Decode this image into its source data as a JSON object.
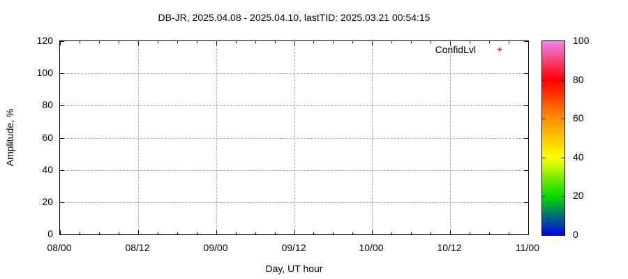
{
  "chart_data": {
    "type": "scatter",
    "title": "DB-JR, 2025.04.08 - 2025.04.10, lastTID: 2025.03.21 00:54:15",
    "xlabel": "Day, UT hour",
    "ylabel": "Amplitude, %",
    "x_tick_labels": [
      "08/00",
      "08/12",
      "09/00",
      "09/12",
      "10/00",
      "10/12",
      "11/00"
    ],
    "x_minor_divisions": 4,
    "y_ticks": [
      0,
      20,
      40,
      60,
      80,
      100,
      120
    ],
    "ylim": [
      0,
      120
    ],
    "grid": "dashed horizontal and vertical at major ticks",
    "legend_position": "top-right-inside",
    "series": [
      {
        "name": "ConfidLvl",
        "marker_glyph": "+",
        "color": "#e10000",
        "points": []
      }
    ],
    "colorbar": {
      "range": [
        0,
        100
      ],
      "ticks": [
        0,
        20,
        40,
        60,
        80,
        100
      ],
      "gradient_colors_bottom_to_top": [
        "#0000f0",
        "#00dc00",
        "#ffff00",
        "#ff9000",
        "#ff0000",
        "#ee82ee"
      ]
    }
  },
  "colors": {
    "background": "#ffffff",
    "axis": "#000000",
    "grid": "#a9a9a9",
    "text": "#000000"
  }
}
